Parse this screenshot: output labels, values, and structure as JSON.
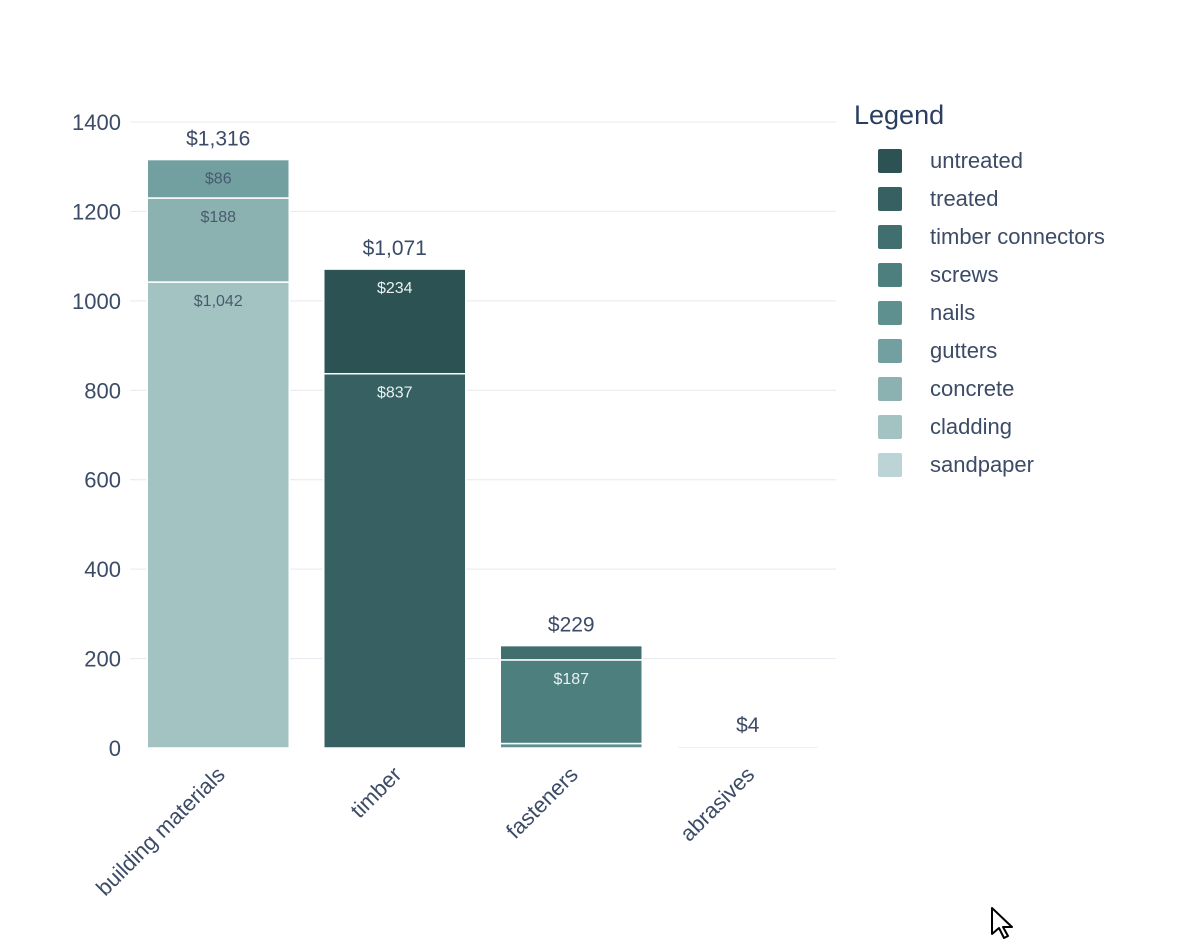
{
  "legend": {
    "title": "Legend",
    "items": [
      {
        "label": "untreated",
        "color": "#2d5253"
      },
      {
        "label": "treated",
        "color": "#366061"
      },
      {
        "label": "timber connectors",
        "color": "#416f70"
      },
      {
        "label": "screws",
        "color": "#4e7f7f"
      },
      {
        "label": "nails",
        "color": "#5f9090"
      },
      {
        "label": "gutters",
        "color": "#72a0a0"
      },
      {
        "label": "concrete",
        "color": "#8bb1b1"
      },
      {
        "label": "cladding",
        "color": "#a3c2c2"
      },
      {
        "label": "sandpaper",
        "color": "#bdd4d6"
      }
    ]
  },
  "chart_data": {
    "type": "bar",
    "stacked": true,
    "categories": [
      "building materials",
      "timber",
      "fasteners",
      "abrasives"
    ],
    "ylim": [
      0,
      1400
    ],
    "yticks": [
      0,
      200,
      400,
      600,
      800,
      1000,
      1200,
      1400
    ],
    "grid": true,
    "legend_position": "right",
    "totals": [
      "$1,316",
      "$1,071",
      "$229",
      "$4"
    ],
    "series": [
      {
        "name": "sandpaper",
        "color": "#bdd4d6",
        "values": [
          0,
          0,
          0,
          4
        ],
        "labels": [
          "",
          "",
          "",
          ""
        ]
      },
      {
        "name": "cladding",
        "color": "#a3c2c2",
        "values": [
          1042,
          0,
          0,
          0
        ],
        "labels": [
          "$1,042",
          "",
          "",
          ""
        ]
      },
      {
        "name": "concrete",
        "color": "#8bb1b1",
        "values": [
          188,
          0,
          0,
          0
        ],
        "labels": [
          "$188",
          "",
          "",
          ""
        ]
      },
      {
        "name": "gutters",
        "color": "#72a0a0",
        "values": [
          86,
          0,
          0,
          0
        ],
        "labels": [
          "$86",
          "",
          "",
          ""
        ]
      },
      {
        "name": "nails",
        "color": "#5f9090",
        "values": [
          0,
          0,
          10,
          0
        ],
        "labels": [
          "",
          "",
          "",
          ""
        ]
      },
      {
        "name": "screws",
        "color": "#4e7f7f",
        "values": [
          0,
          0,
          187,
          0
        ],
        "labels": [
          "",
          "",
          "$187",
          ""
        ]
      },
      {
        "name": "timber connectors",
        "color": "#416f70",
        "values": [
          0,
          0,
          32,
          0
        ],
        "labels": [
          "",
          "",
          "",
          ""
        ]
      },
      {
        "name": "treated",
        "color": "#366061",
        "values": [
          0,
          837,
          0,
          0
        ],
        "labels": [
          "",
          "$837",
          "",
          ""
        ]
      },
      {
        "name": "untreated",
        "color": "#2d5253",
        "values": [
          0,
          234,
          0,
          0
        ],
        "labels": [
          "",
          "$234",
          "",
          ""
        ]
      }
    ]
  }
}
